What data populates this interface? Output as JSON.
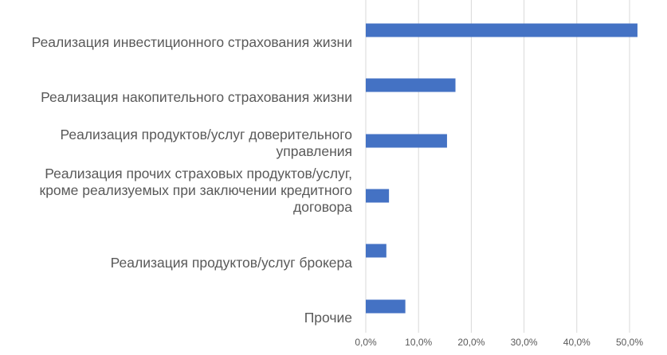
{
  "chart_data": {
    "type": "bar",
    "orientation": "horizontal",
    "categories": [
      "Реализация инвестиционного страхования жизни",
      "Реализация накопительного страхования жизни",
      "Реализация продуктов/услуг доверительного\nуправления",
      "Реализация прочих страховых продуктов/услуг,\nкроме реализуемых при заключении кредитного\nдоговора",
      "Реализация продуктов/услуг брокера",
      "Прочие"
    ],
    "values": [
      51.5,
      17.0,
      15.4,
      4.4,
      3.9,
      7.5
    ],
    "xlim": [
      0,
      52.5
    ],
    "xticks": [
      0,
      10,
      20,
      30,
      40,
      50
    ],
    "xtick_labels": [
      "0,0%",
      "10,0%",
      "20,0%",
      "30,0%",
      "40,0%",
      "50,0%"
    ],
    "bar_color": "#4472c4",
    "grid": "vertical",
    "legend": "none"
  }
}
